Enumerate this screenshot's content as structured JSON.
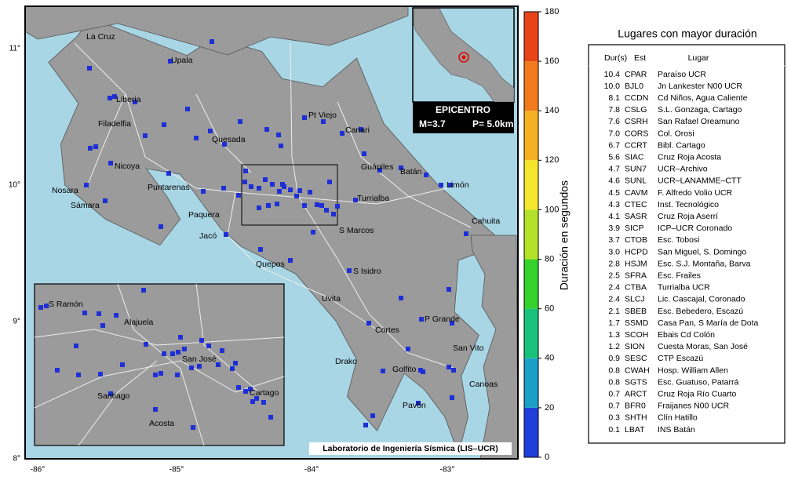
{
  "map": {
    "cities": [
      "La Cruz",
      "Upala",
      "Liberia",
      "Filadelfia",
      "Pt Viejo",
      "Cariari",
      "Quesada",
      "Nicoya",
      "Guápiles",
      "Batán",
      "Limón",
      "Nosara",
      "Puntarenas",
      "Turrialba",
      "Sámara",
      "Paquera",
      "Cahuita",
      "S Marcos",
      "Jacó",
      "Quepos",
      "S Isidro",
      "Uvita",
      "P Grande",
      "Cortes",
      "San Vito",
      "Drako",
      "Golfito",
      "Canoas",
      "Pavón"
    ],
    "inset_cities": [
      "S Ramón",
      "Alajuela",
      "San José",
      "Santiago",
      "Cartago",
      "Acosta"
    ],
    "lon_labels": [
      "-86°",
      "-85°",
      "-84°",
      "-83°"
    ],
    "lat_labels": [
      "11°",
      "10°",
      "9°",
      "8°"
    ],
    "credit": "Laboratorio de Ingeniería Sísmica (LIS–UCR)",
    "epicenter": {
      "title": "EPICENTRO",
      "magnitude": "M=3.7",
      "depth": "P= 5.0km"
    }
  },
  "colorbar": {
    "label": "Duración en segundos",
    "lim": [
      0,
      180
    ],
    "ticks": [
      0,
      20,
      40,
      60,
      80,
      100,
      120,
      140,
      160,
      180
    ],
    "colors": [
      "#1f3fd8",
      "#1aa0c8",
      "#18c27a",
      "#36d22c",
      "#b4e22a",
      "#f4e62a",
      "#f6b024",
      "#f27a1e",
      "#e84418"
    ]
  },
  "table": {
    "title": "Lugares con mayor duración",
    "columns": [
      "Dur(s)",
      "Est",
      "Lugar"
    ],
    "rows": [
      [
        "10.4",
        "CPAR",
        "Paraíso UCR"
      ],
      [
        "10.0",
        "BJL0",
        "Jn Lankester N00 UCR"
      ],
      [
        "8.1",
        "CCDN",
        "Cd Niños, Agua Caliente"
      ],
      [
        "7.8",
        "CSLG",
        "S.L. Gonzaga, Cartago"
      ],
      [
        "7.6",
        "CSRH",
        "San Rafael Oreamuno"
      ],
      [
        "7.0",
        "CORS",
        "Col. Orosi"
      ],
      [
        "6.7",
        "CCRT",
        "Bibl. Cartago"
      ],
      [
        "5.6",
        "SIAC",
        "Cruz Roja Acosta"
      ],
      [
        "4.7",
        "SUN7",
        "UCR–Archivo"
      ],
      [
        "4.6",
        "SUNL",
        "UCR–LANAMME–CTT"
      ],
      [
        "4.5",
        "CAVM",
        "F. Alfredo Volio UCR"
      ],
      [
        "4.3",
        "CTEC",
        "Inst. Tecnológico"
      ],
      [
        "4.1",
        "SASR",
        "Cruz Roja Aserrí"
      ],
      [
        "3.9",
        "SICP",
        "ICP–UCR Coronado"
      ],
      [
        "3.7",
        "CTOB",
        "Esc. Tobosi"
      ],
      [
        "3.0",
        "HCPD",
        "San Miguel, S. Domingo"
      ],
      [
        "2.8",
        "HSJM",
        "Esc. S.J. Montaña, Barva"
      ],
      [
        "2.5",
        "SFRA",
        "Esc. Frailes"
      ],
      [
        "2.4",
        "CTBA",
        "Turrialba UCR"
      ],
      [
        "2.4",
        "SLCJ",
        "Lic. Cascajal, Coronado"
      ],
      [
        "2.1",
        "SBEB",
        "Esc. Bebedero, Escazú"
      ],
      [
        "1.7",
        "SSMD",
        "Casa Pan, S María de Dota"
      ],
      [
        "1.3",
        "SCOH",
        "Ebais Cd Colón"
      ],
      [
        "1.2",
        "SION",
        "Cuesta Moras, San José"
      ],
      [
        "0.9",
        "SESC",
        "CTP Escazú"
      ],
      [
        "0.8",
        "CWAH",
        "Hosp. William Allen"
      ],
      [
        "0.8",
        "SGTS",
        "Esc. Guatuso, Patarrá"
      ],
      [
        "0.7",
        "ARCT",
        "Cruz Roja Río Cuarto"
      ],
      [
        "0.7",
        "BFR0",
        "Fraijanes N00 UCR"
      ],
      [
        "0.3",
        "SHTH",
        "Clín Hatillo"
      ],
      [
        "0.1",
        "LBAT",
        "INS Batán"
      ]
    ]
  }
}
